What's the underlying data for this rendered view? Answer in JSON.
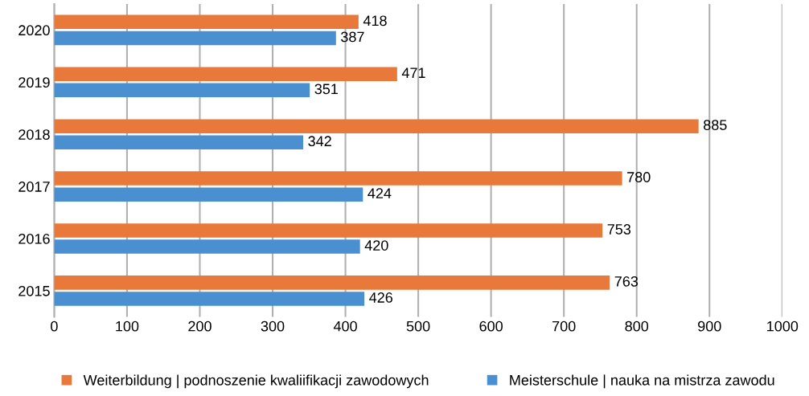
{
  "chart_data": {
    "type": "bar",
    "orientation": "horizontal",
    "categories": [
      "2020",
      "2019",
      "2018",
      "2017",
      "2016",
      "2015"
    ],
    "series": [
      {
        "name": "Weiterbildung | podnoszenie kwaliifikacji zawodowych",
        "color": "#e8793a",
        "values": [
          418,
          471,
          885,
          780,
          753,
          763
        ]
      },
      {
        "name": "Meisterschule | nauka na mistrza zawodu",
        "color": "#4a8fd0",
        "values": [
          387,
          351,
          342,
          424,
          420,
          426
        ]
      }
    ],
    "xlim": [
      0,
      1000
    ],
    "xticks": [
      0,
      100,
      200,
      300,
      400,
      500,
      600,
      700,
      800,
      900,
      1000
    ],
    "grid": "x",
    "legend": "bottom",
    "data_labels": true
  }
}
